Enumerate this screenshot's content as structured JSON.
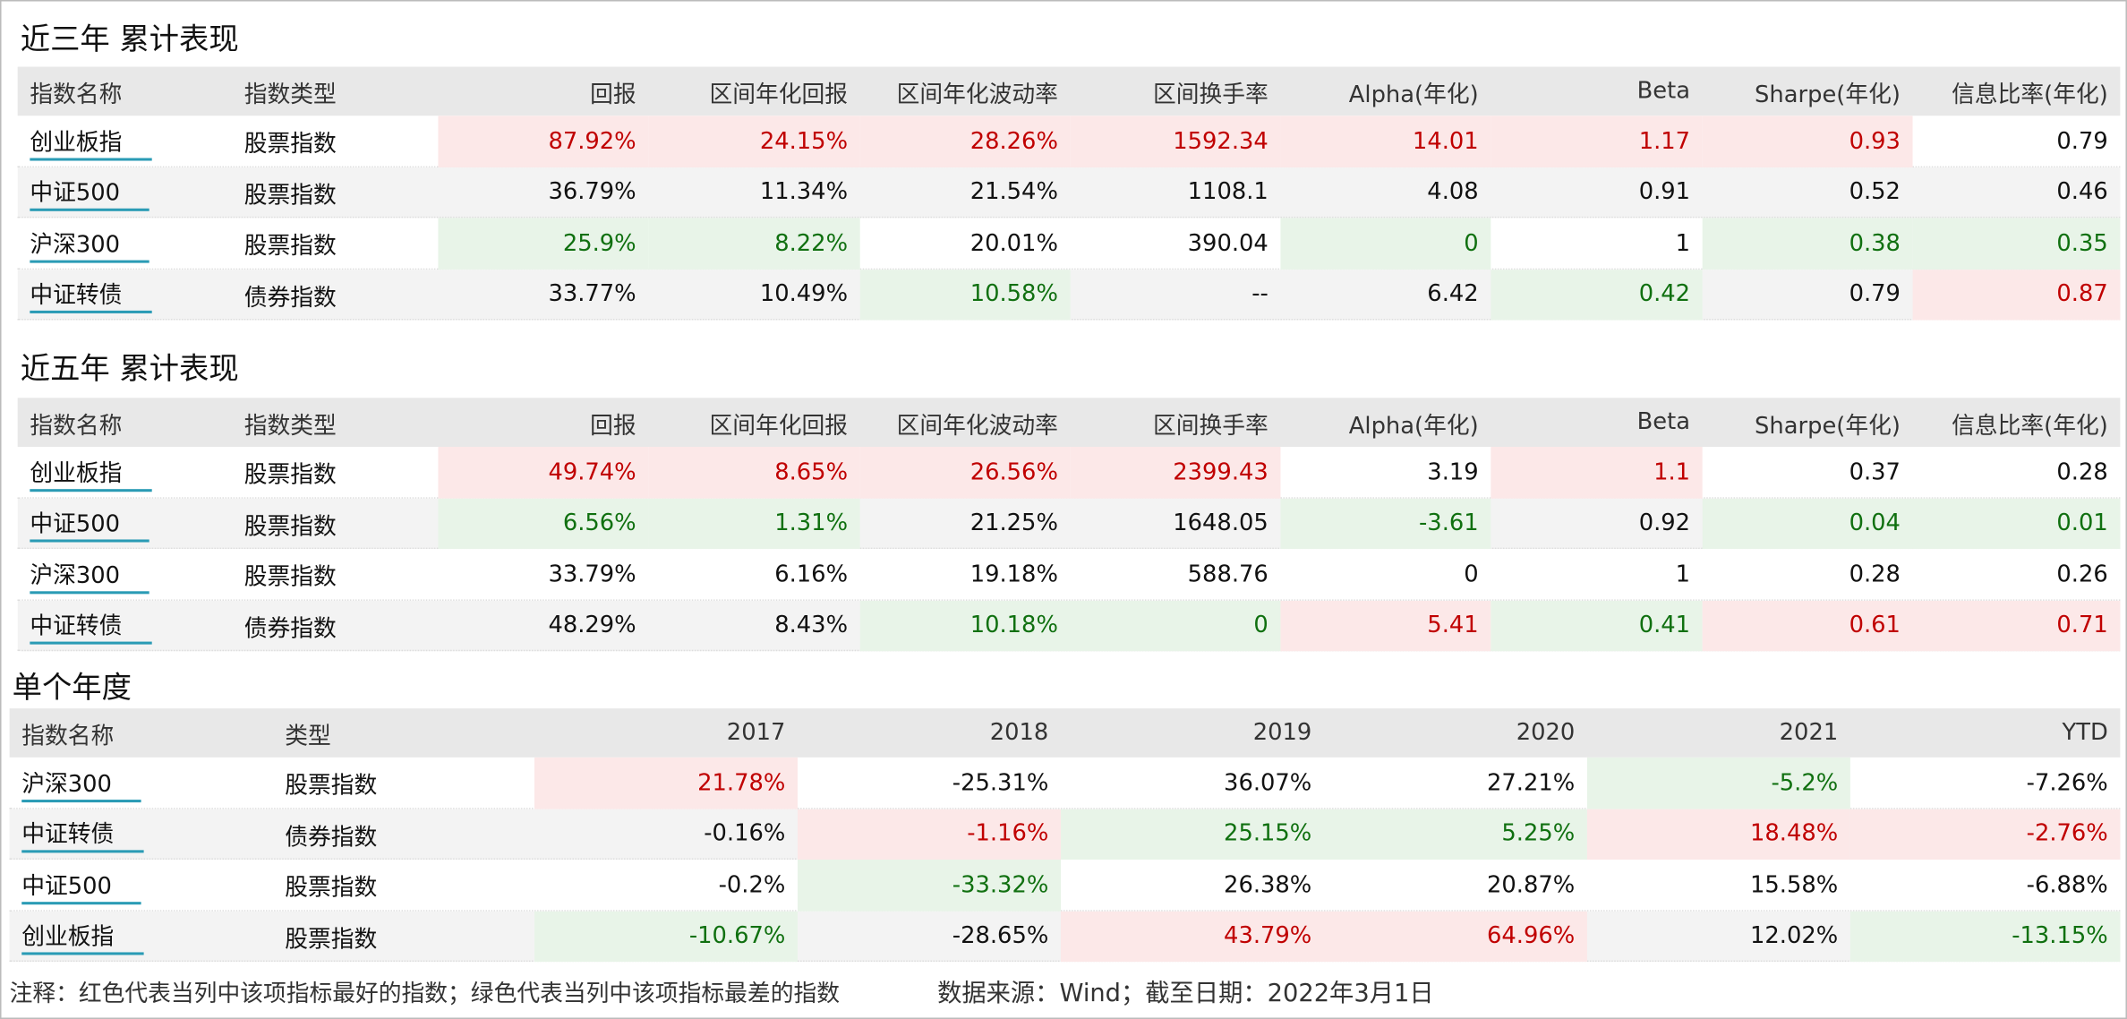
{
  "sections": [
    {
      "title": "近三年 累计表现",
      "columns": [
        "指数名称",
        "指数类型",
        "回报",
        "区间年化回报",
        "区间年化波动率",
        "区间换手率",
        "Alpha(年化)",
        "Beta",
        "Sharpe(年化)",
        "信息比率(年化)"
      ],
      "rows": [
        [
          "创业板指",
          "股票指数",
          "87.92%",
          "24.15%",
          "28.26%",
          "1592.34",
          "14.01",
          "1.17",
          "0.93",
          "0.79"
        ],
        [
          "中证500",
          "股票指数",
          "36.79%",
          "11.34%",
          "21.54%",
          "1108.1",
          "4.08",
          "0.91",
          "0.52",
          "0.46"
        ],
        [
          "沪深300",
          "股票指数",
          "25.9%",
          "8.22%",
          "20.01%",
          "390.04",
          "0",
          "1",
          "0.38",
          "0.35"
        ],
        [
          "中证转债",
          "债券指数",
          "33.77%",
          "10.49%",
          "10.58%",
          "--",
          "6.42",
          "0.42",
          "0.79",
          "0.87"
        ]
      ],
      "highlights": [
        [
          null,
          null,
          "best",
          "best",
          "best",
          "best",
          "best",
          "best",
          "best",
          null
        ],
        [
          null,
          null,
          null,
          null,
          null,
          null,
          null,
          null,
          null,
          null
        ],
        [
          null,
          null,
          "worst",
          "worst",
          null,
          null,
          "worst",
          null,
          "worst",
          "worst"
        ],
        [
          null,
          null,
          null,
          null,
          "worst",
          null,
          null,
          "worst",
          null,
          "best"
        ]
      ]
    },
    {
      "title": "近五年 累计表现",
      "columns": [
        "指数名称",
        "指数类型",
        "回报",
        "区间年化回报",
        "区间年化波动率",
        "区间换手率",
        "Alpha(年化)",
        "Beta",
        "Sharpe(年化)",
        "信息比率(年化)"
      ],
      "rows": [
        [
          "创业板指",
          "股票指数",
          "49.74%",
          "8.65%",
          "26.56%",
          "2399.43",
          "3.19",
          "1.1",
          "0.37",
          "0.28"
        ],
        [
          "中证500",
          "股票指数",
          "6.56%",
          "1.31%",
          "21.25%",
          "1648.05",
          "-3.61",
          "0.92",
          "0.04",
          "0.01"
        ],
        [
          "沪深300",
          "股票指数",
          "33.79%",
          "6.16%",
          "19.18%",
          "588.76",
          "0",
          "1",
          "0.28",
          "0.26"
        ],
        [
          "中证转债",
          "债券指数",
          "48.29%",
          "8.43%",
          "10.18%",
          "0",
          "5.41",
          "0.41",
          "0.61",
          "0.71"
        ]
      ],
      "highlights": [
        [
          null,
          null,
          "best",
          "best",
          "best",
          "best",
          null,
          "best",
          null,
          null
        ],
        [
          null,
          null,
          "worst",
          "worst",
          null,
          null,
          "worst",
          null,
          "worst",
          "worst"
        ],
        [
          null,
          null,
          null,
          null,
          null,
          null,
          null,
          null,
          null,
          null
        ],
        [
          null,
          null,
          null,
          null,
          "worst",
          "worst",
          "best",
          "worst",
          "best",
          "best"
        ]
      ]
    },
    {
      "title": "单个年度",
      "columns": [
        "指数名称",
        "类型",
        "2017",
        "2018",
        "2019",
        "2020",
        "2021",
        "YTD"
      ],
      "rows": [
        [
          "沪深300",
          "股票指数",
          "21.78%",
          "-25.31%",
          "36.07%",
          "27.21%",
          "-5.2%",
          "-7.26%"
        ],
        [
          "中证转债",
          "债券指数",
          "-0.16%",
          "-1.16%",
          "25.15%",
          "5.25%",
          "18.48%",
          "-2.76%"
        ],
        [
          "中证500",
          "股票指数",
          "-0.2%",
          "-33.32%",
          "26.38%",
          "20.87%",
          "15.58%",
          "-6.88%"
        ],
        [
          "创业板指",
          "股票指数",
          "-10.67%",
          "-28.65%",
          "43.79%",
          "64.96%",
          "12.02%",
          "-13.15%"
        ]
      ],
      "highlights": [
        [
          null,
          null,
          "best",
          null,
          null,
          null,
          "worst",
          null
        ],
        [
          null,
          null,
          null,
          "best",
          "worst",
          "worst",
          "best",
          "best"
        ],
        [
          null,
          null,
          null,
          "worst",
          null,
          null,
          null,
          null
        ],
        [
          null,
          null,
          "worst",
          null,
          "best",
          "best",
          null,
          "worst"
        ]
      ]
    }
  ],
  "note": {
    "legend": "注释：红色代表当列中该项指标最好的指数；绿色代表当列中该项指标最差的指数",
    "source": "数据来源：Wind；截至日期：2022年3月1日"
  }
}
